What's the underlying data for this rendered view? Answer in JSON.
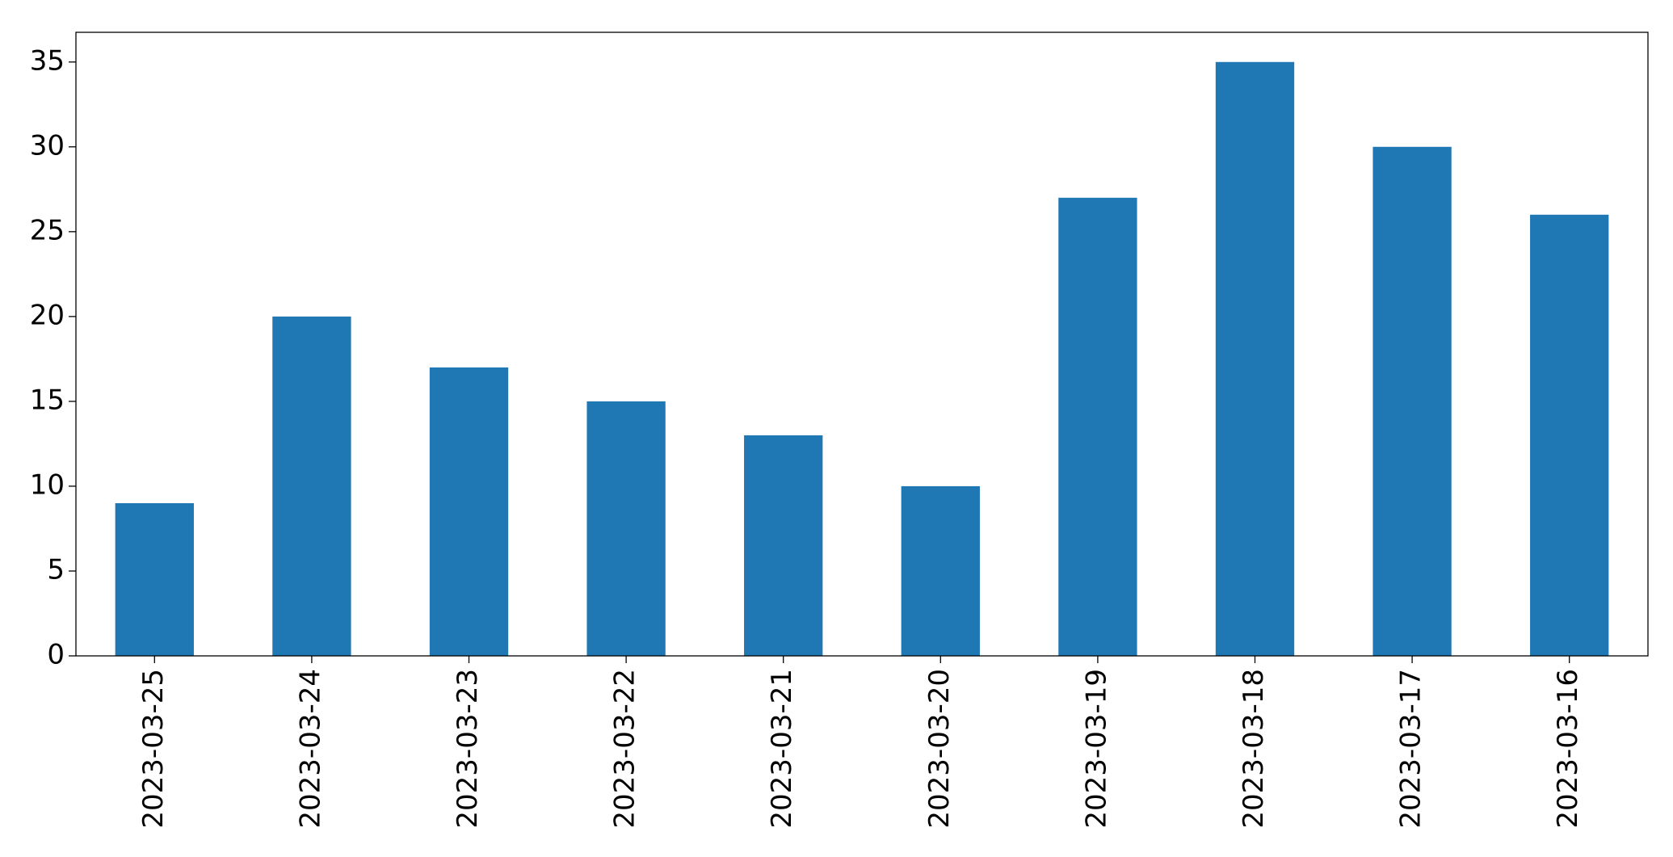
{
  "chart_data": {
    "type": "bar",
    "categories": [
      "2023-03-25",
      "2023-03-24",
      "2023-03-23",
      "2023-03-22",
      "2023-03-21",
      "2023-03-20",
      "2023-03-19",
      "2023-03-18",
      "2023-03-17",
      "2023-03-16"
    ],
    "values": [
      9,
      20,
      17,
      15,
      13,
      10,
      27,
      35,
      30,
      26
    ],
    "color": "#1f77b4",
    "ylim": [
      0,
      36.75
    ],
    "yticks": [
      0,
      5,
      10,
      15,
      20,
      25,
      30,
      35
    ],
    "grid": false
  }
}
